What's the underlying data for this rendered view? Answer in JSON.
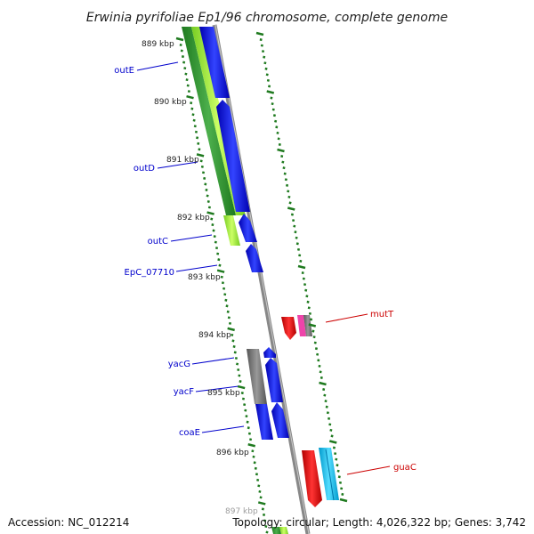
{
  "title": "Erwinia pyrifoliae Ep1/96 chromosome, complete genome",
  "footer": {
    "accession": "Accession: NC_012214",
    "summary": "Topology: circular; Length: 4,026,322 bp; Genes: 3,742"
  },
  "ticks": [
    "889 kbp",
    "890 kbp",
    "891 kbp",
    "892 kbp",
    "893 kbp",
    "894 kbp",
    "895 kbp",
    "896 kbp",
    "897 kbp"
  ],
  "genes": [
    {
      "name": "outE",
      "color": "#0000cc"
    },
    {
      "name": "outD",
      "color": "#0000cc"
    },
    {
      "name": "outC",
      "color": "#0000cc"
    },
    {
      "name": "EpC_07710",
      "color": "#0000cc"
    },
    {
      "name": "yacG",
      "color": "#0000cc"
    },
    {
      "name": "yacF",
      "color": "#0000cc"
    },
    {
      "name": "coaE",
      "color": "#0000cc"
    },
    {
      "name": "mutT",
      "color": "#cc0000"
    },
    {
      "name": "guaC",
      "color": "#cc0000"
    }
  ],
  "colors": {
    "forward_cds": "#0000ee",
    "reverse_cds": "#ee0000",
    "backbone": "#888888",
    "gc_ring_dark": "#2e8b2e",
    "gc_ring_light": "#99ee33",
    "tick": "#1f7a1f",
    "misc_feature": "#666666",
    "trna_cyan": "#22bbee",
    "pink": "#ee44aa"
  }
}
